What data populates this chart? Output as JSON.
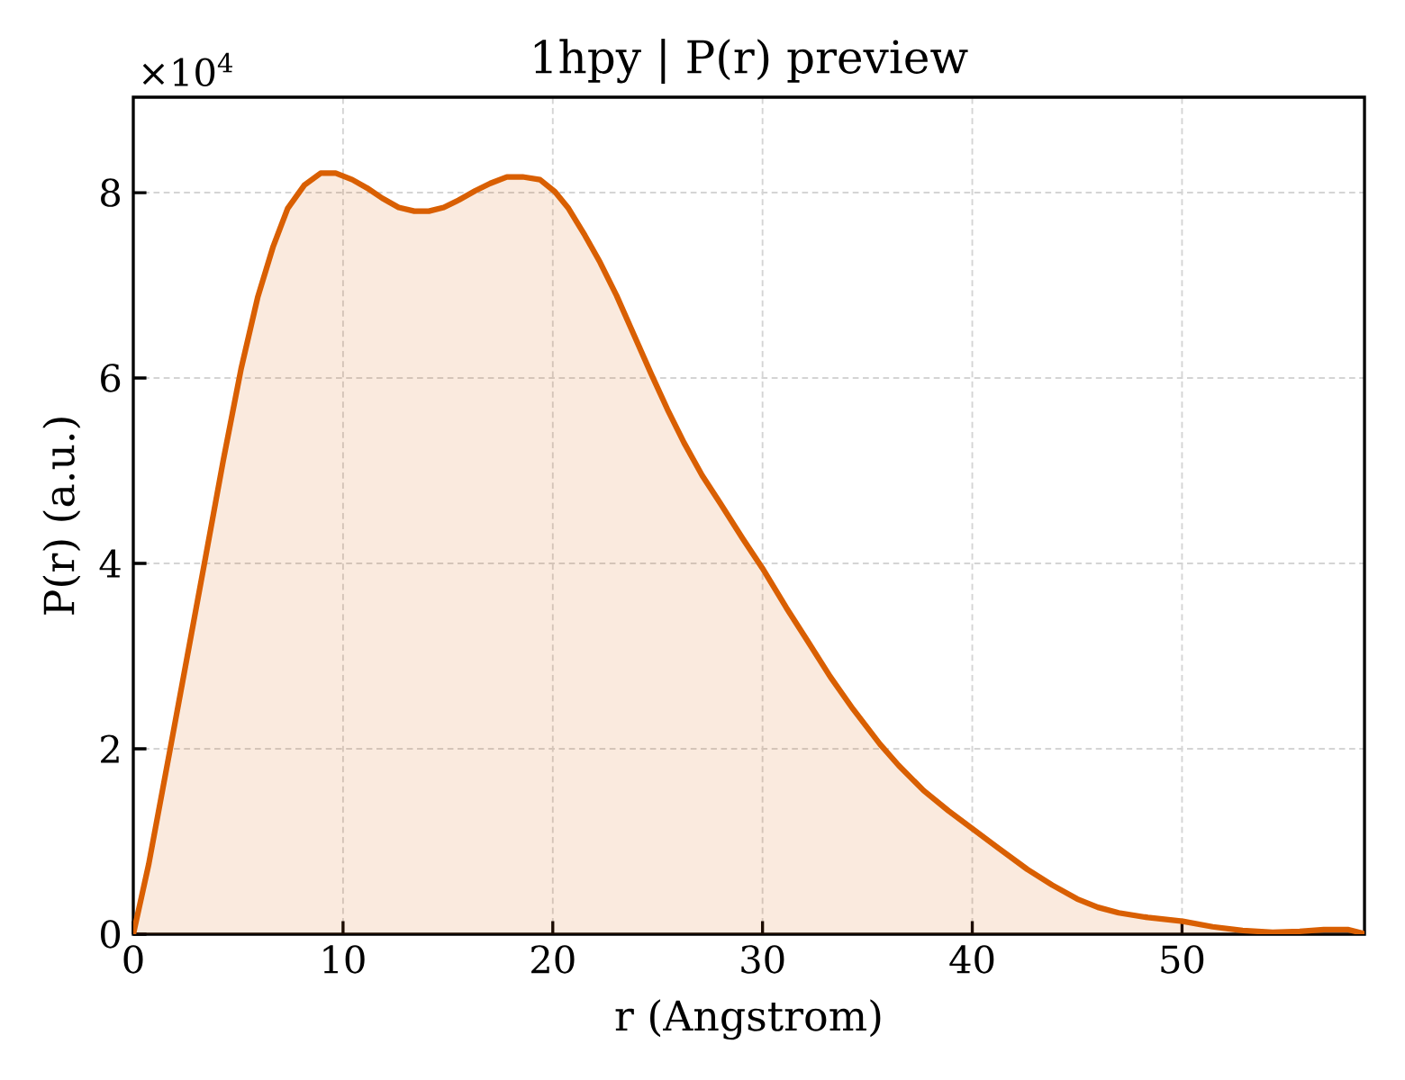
{
  "chart_data": {
    "type": "area",
    "title": "1hpy | P(r) preview",
    "xlabel": "r (Angstrom)",
    "ylabel": "P(r) (a.u.)",
    "annotations": [
      "×10$^{4}$"
    ],
    "x": [
      0,
      0.74,
      1.76,
      3.39,
      4.28,
      5.14,
      5.93,
      6.67,
      7.36,
      8.15,
      8.93,
      9.65,
      10.44,
      11.15,
      11.87,
      12.65,
      13.4,
      14.09,
      14.8,
      15.52,
      16.3,
      17.02,
      17.81,
      18.56,
      19.39,
      20.1,
      20.75,
      21.53,
      22.25,
      23.04,
      23.82,
      24.68,
      25.47,
      26.26,
      27.12,
      27.98,
      29.05,
      29.99,
      31.14,
      32.13,
      33.22,
      34.31,
      35.6,
      36.49,
      37.68,
      38.87,
      39.99,
      41.24,
      42.62,
      43.81,
      45.0,
      45.99,
      46.98,
      48.37,
      50.03,
      51.46,
      52.89,
      54.32,
      55.61,
      56.76,
      57.9,
      58.62
    ],
    "values": [
      0,
      0.76,
      2.0,
      4.0,
      5.1,
      6.1,
      6.87,
      7.42,
      7.83,
      8.08,
      8.21,
      8.21,
      8.14,
      8.05,
      7.94,
      7.84,
      7.8,
      7.8,
      7.84,
      7.92,
      8.02,
      8.1,
      8.17,
      8.17,
      8.14,
      8.01,
      7.83,
      7.54,
      7.25,
      6.89,
      6.49,
      6.05,
      5.66,
      5.3,
      4.95,
      4.65,
      4.27,
      3.95,
      3.52,
      3.17,
      2.78,
      2.43,
      2.05,
      1.82,
      1.55,
      1.33,
      1.14,
      0.93,
      0.7,
      0.53,
      0.38,
      0.29,
      0.23,
      0.18,
      0.14,
      0.08,
      0.04,
      0.02,
      0.03,
      0.05,
      0.05,
      0.01
    ],
    "color": "#d95f02",
    "xlim": [
      0,
      58.7
    ],
    "ylim": [
      0,
      9.03
    ],
    "xticks": [
      0,
      10,
      20,
      30,
      40,
      50
    ],
    "yticks": [
      0,
      2,
      4,
      6,
      8
    ],
    "grid": true
  }
}
